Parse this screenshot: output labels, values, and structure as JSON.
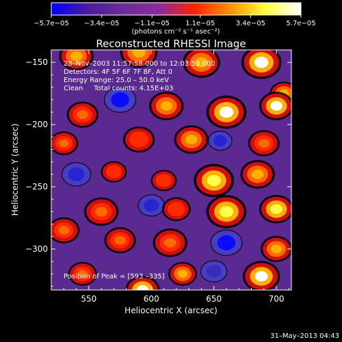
{
  "chart_data": {
    "type": "heatmap",
    "title": "Reconstructed RHESSI Image",
    "xlabel": "Heliocentric X (arcsec)",
    "ylabel": "Heliocentric Y (arcsec)",
    "xlim": [
      520,
      712
    ],
    "ylim": [
      -333,
      -140
    ],
    "xticks": [
      550,
      600,
      650,
      700
    ],
    "xtick_labels": [
      "550",
      "600",
      "650",
      "700"
    ],
    "yticks": [
      -150,
      -200,
      -250,
      -300
    ],
    "ytick_labels": [
      "−150",
      "−200",
      "−250",
      "−300"
    ],
    "colorbar": {
      "range": [
        -5.7e-05,
        5.7e-05
      ],
      "ticks": [
        -5.7e-05,
        -3.4e-05,
        -1.1e-05,
        1.1e-05,
        3.4e-05,
        5.7e-05
      ],
      "tick_labels": [
        "−5.7e−05",
        "−3.4e−05",
        "−1.1e−05",
        "1.1e−05",
        "3.4e−05",
        "5.7e−05"
      ],
      "unit_label": "(photons cm⁻² s⁻¹ asec⁻²)",
      "colors": [
        "#0000ff",
        "#4a1aa0",
        "#6a2d95",
        "#8a2aa0",
        "#ff2000",
        "#ff9000",
        "#ffff40",
        "#ffffff"
      ]
    },
    "annotations": [
      "28–Nov–2003 11:57:58.000 to 12:03:58.000",
      "Detectors: 4F 5F 6F 7F 8F, Att 0",
      "Energy Range: 25.0 – 50.0 keV",
      "Clean     Total counts: 4.15E+03"
    ],
    "peak_label": "Position of Peak = [593 –335]",
    "peak": {
      "x": 593,
      "y": -335
    },
    "timestamp": "31–May–2013 04:43",
    "blobs": [
      {
        "x": 540,
        "y": -145,
        "v": 0.7,
        "r": 12
      },
      {
        "x": 590,
        "y": -142,
        "v": 0.8,
        "r": 13
      },
      {
        "x": 640,
        "y": -150,
        "v": 0.75,
        "r": 13
      },
      {
        "x": 688,
        "y": -150,
        "v": 1.0,
        "r": 14
      },
      {
        "x": 706,
        "y": -175,
        "v": 0.7,
        "r": 10
      },
      {
        "x": 575,
        "y": -180,
        "v": -0.9,
        "r": 12
      },
      {
        "x": 545,
        "y": -192,
        "v": 0.6,
        "r": 11
      },
      {
        "x": 612,
        "y": -185,
        "v": 0.7,
        "r": 12
      },
      {
        "x": 660,
        "y": -190,
        "v": 1.0,
        "r": 14
      },
      {
        "x": 700,
        "y": -185,
        "v": 1.0,
        "r": 12
      },
      {
        "x": 530,
        "y": -215,
        "v": 0.55,
        "r": 10
      },
      {
        "x": 590,
        "y": -212,
        "v": 0.5,
        "r": 11
      },
      {
        "x": 632,
        "y": -212,
        "v": 0.8,
        "r": 12
      },
      {
        "x": 655,
        "y": -213,
        "v": -0.7,
        "r": 9
      },
      {
        "x": 690,
        "y": -215,
        "v": 0.6,
        "r": 11
      },
      {
        "x": 540,
        "y": -240,
        "v": -0.75,
        "r": 11
      },
      {
        "x": 570,
        "y": -238,
        "v": 0.45,
        "r": 9
      },
      {
        "x": 610,
        "y": -245,
        "v": 0.35,
        "r": 9
      },
      {
        "x": 650,
        "y": -245,
        "v": 0.9,
        "r": 14
      },
      {
        "x": 685,
        "y": -240,
        "v": 0.7,
        "r": 12
      },
      {
        "x": 560,
        "y": -270,
        "v": 0.6,
        "r": 12
      },
      {
        "x": 600,
        "y": -265,
        "v": -0.6,
        "r": 10
      },
      {
        "x": 620,
        "y": -268,
        "v": 0.5,
        "r": 10
      },
      {
        "x": 660,
        "y": -270,
        "v": 0.85,
        "r": 14
      },
      {
        "x": 700,
        "y": -268,
        "v": 0.9,
        "r": 12
      },
      {
        "x": 530,
        "y": -285,
        "v": 0.6,
        "r": 11
      },
      {
        "x": 575,
        "y": -293,
        "v": 0.55,
        "r": 11
      },
      {
        "x": 615,
        "y": -295,
        "v": 0.6,
        "r": 12
      },
      {
        "x": 660,
        "y": -295,
        "v": -1.0,
        "r": 12
      },
      {
        "x": 700,
        "y": -300,
        "v": 0.7,
        "r": 11
      },
      {
        "x": 545,
        "y": -320,
        "v": 0.55,
        "r": 10
      },
      {
        "x": 593,
        "y": -333,
        "v": 1.0,
        "r": 12
      },
      {
        "x": 625,
        "y": -320,
        "v": 0.7,
        "r": 10
      },
      {
        "x": 650,
        "y": -318,
        "v": -0.4,
        "r": 10
      },
      {
        "x": 688,
        "y": -322,
        "v": 1.0,
        "r": 13
      }
    ]
  }
}
